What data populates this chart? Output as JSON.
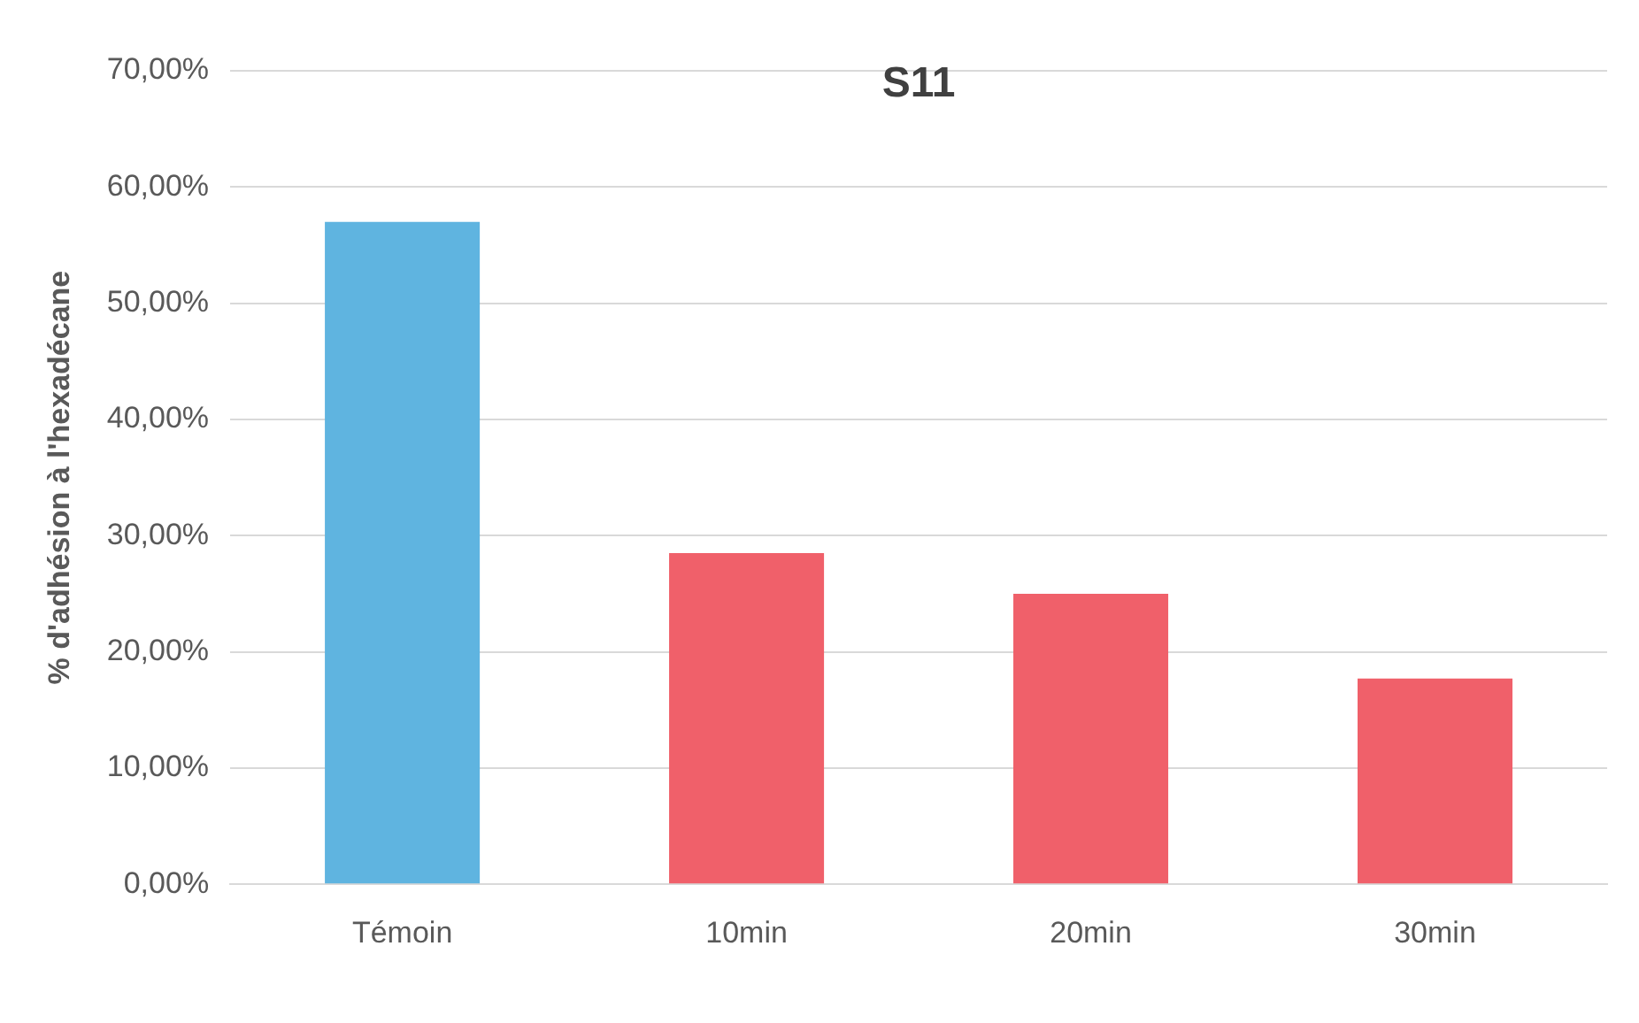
{
  "chart_data": {
    "type": "bar",
    "title": "S11",
    "ylabel": "% d'adhésion à l'hexadécane",
    "categories": [
      "Témoin",
      "10min",
      "20min",
      "30min"
    ],
    "values": [
      57,
      28.5,
      25,
      17.7
    ],
    "colors": [
      "#5fb4e0",
      "#f0606a",
      "#f0606a",
      "#f0606a"
    ],
    "ylim": [
      0,
      70
    ],
    "yticks": [
      {
        "value": 0,
        "label": "0,00%"
      },
      {
        "value": 10,
        "label": "10,00%"
      },
      {
        "value": 20,
        "label": "20,00%"
      },
      {
        "value": 30,
        "label": "30,00%"
      },
      {
        "value": 40,
        "label": "40,00%"
      },
      {
        "value": 50,
        "label": "50,00%"
      },
      {
        "value": 60,
        "label": "60,00%"
      },
      {
        "value": 70,
        "label": "70,00%"
      }
    ],
    "grid": "y",
    "legend": false
  }
}
